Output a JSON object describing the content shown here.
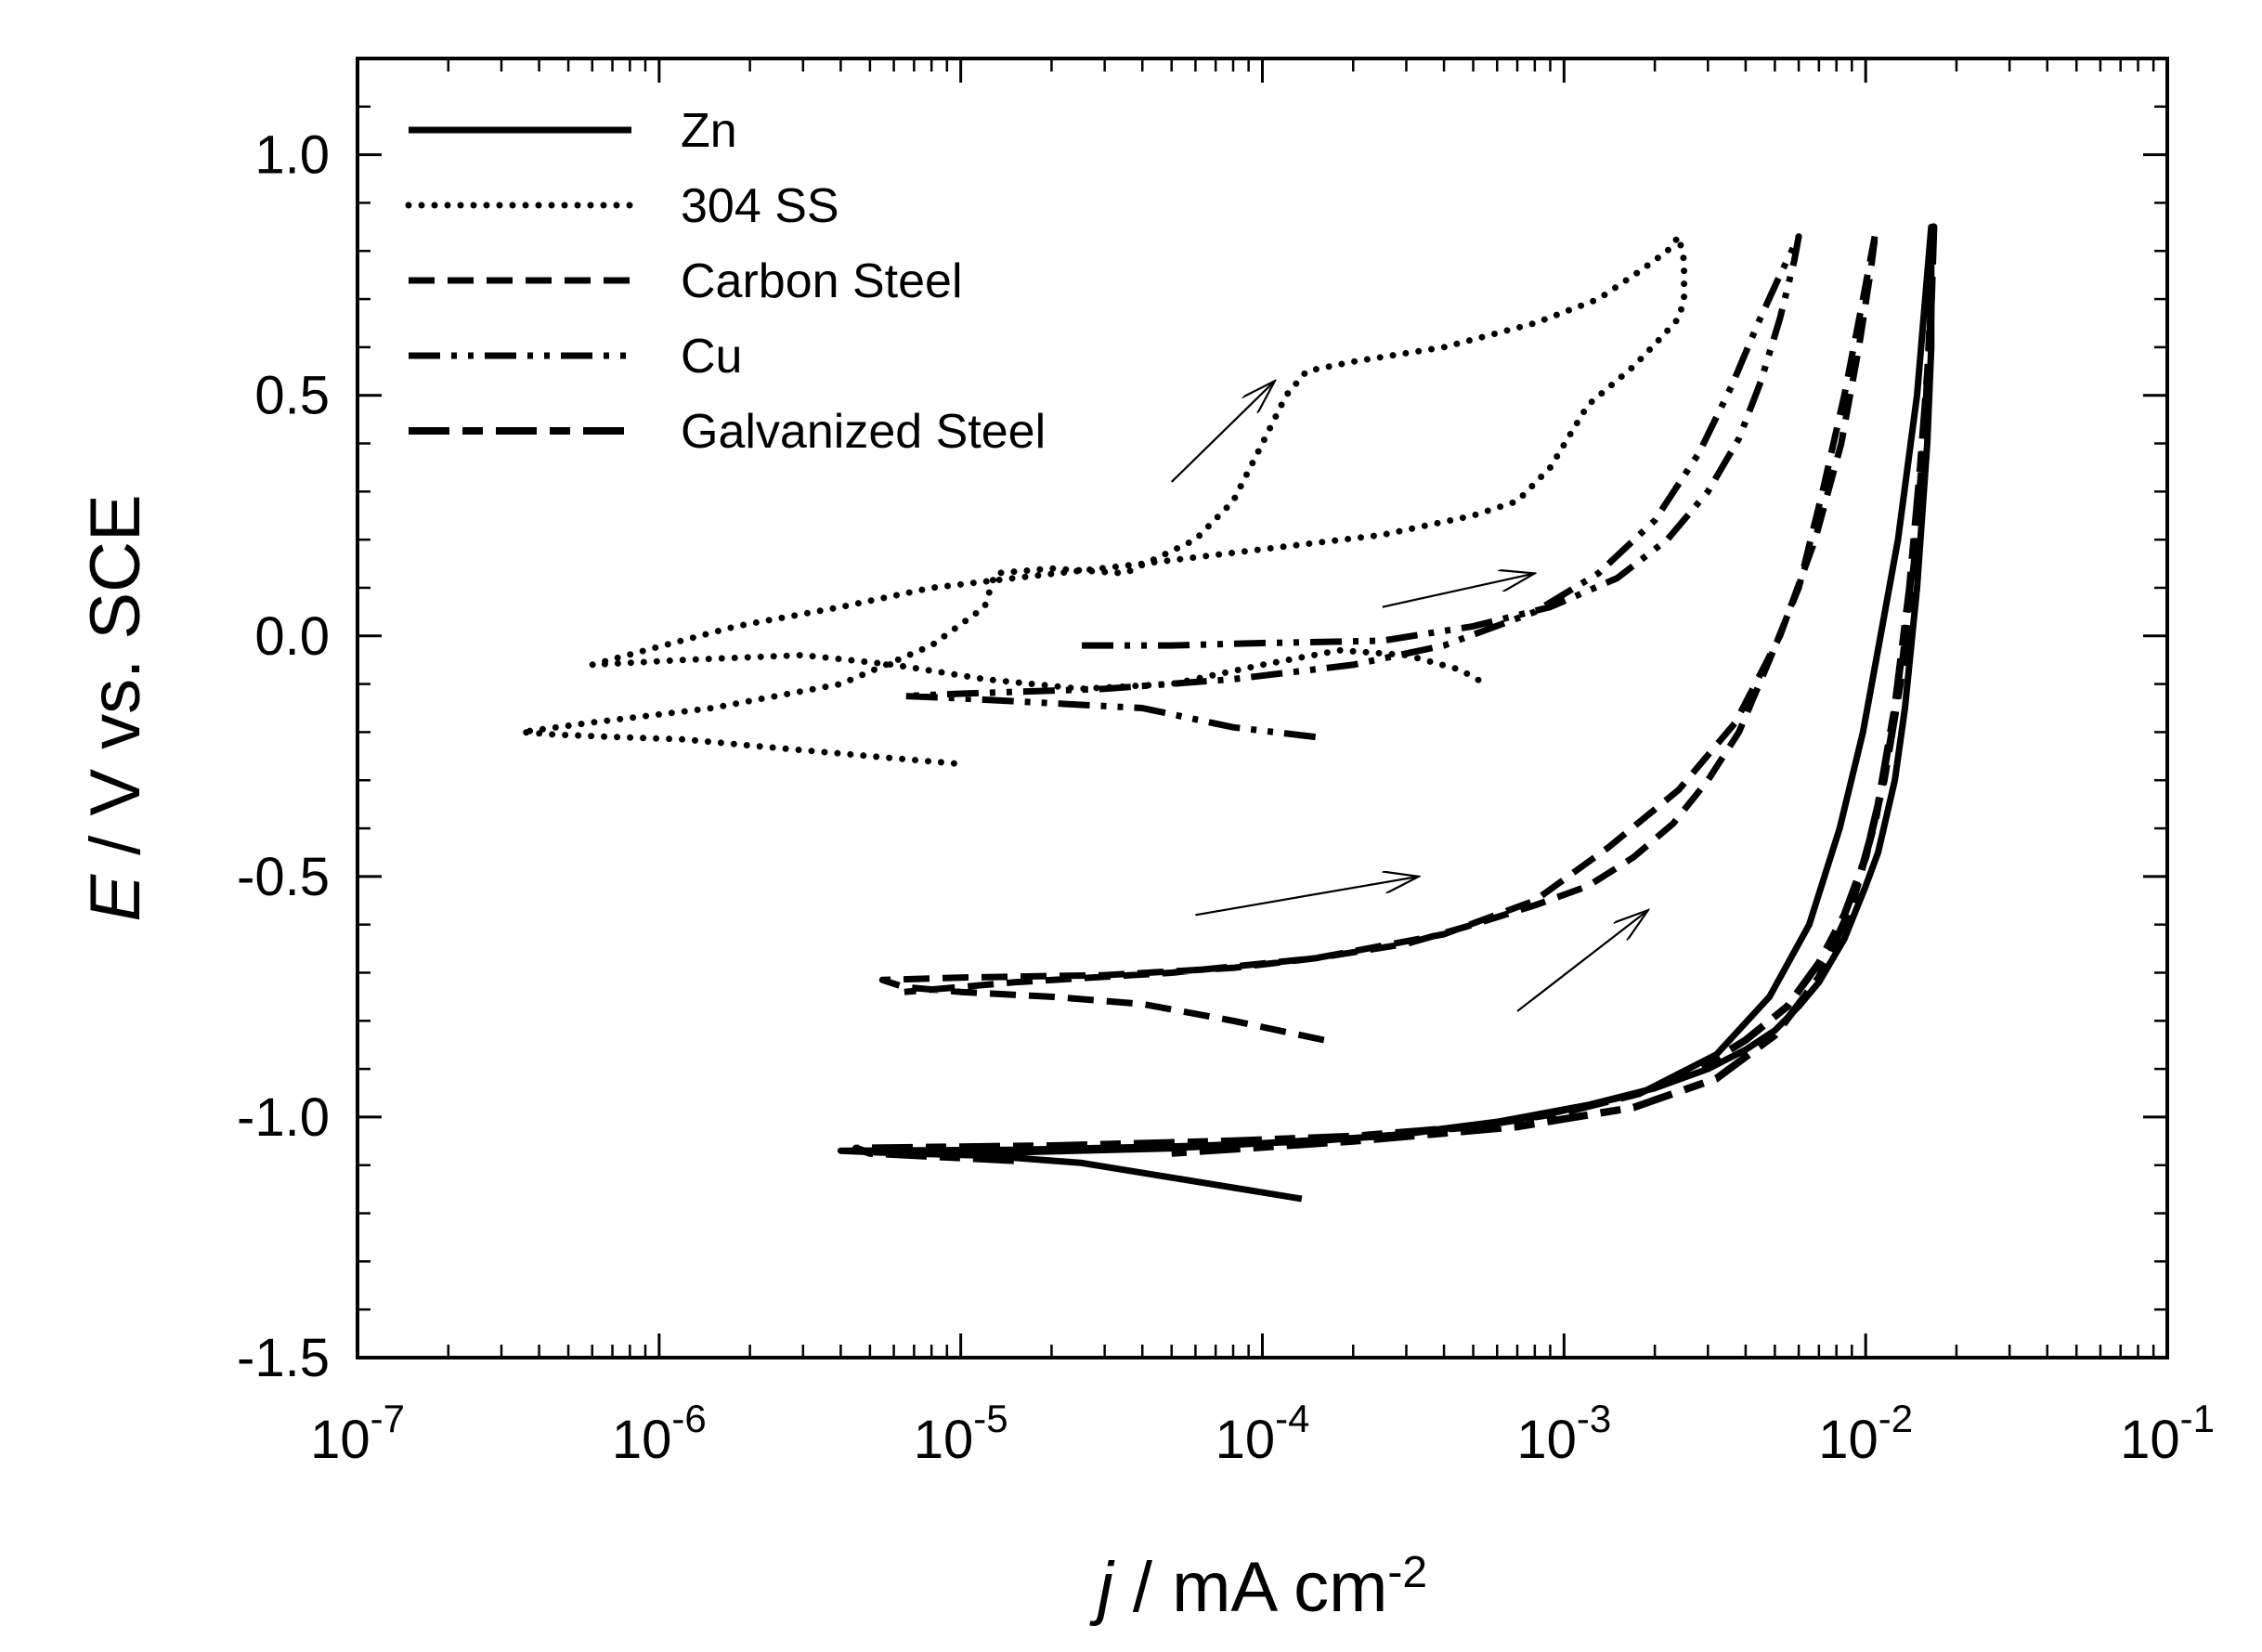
{
  "chart_data": {
    "type": "line",
    "title": "",
    "xscale": "log",
    "xlim": [
      1e-07,
      0.1
    ],
    "ylim": [
      -1.5,
      1.2
    ],
    "grid": false,
    "legend_position": "top-left",
    "xlabel": {
      "italic": "j",
      "rest": " / mA cm",
      "sup": "-2"
    },
    "ylabel": {
      "italic": "E",
      "rest": " / V vs. SCE"
    },
    "xticks": [
      {
        "value": 1e-07,
        "base": "10",
        "exp": "-7"
      },
      {
        "value": 1e-06,
        "base": "10",
        "exp": "-6"
      },
      {
        "value": 1e-05,
        "base": "10",
        "exp": "-5"
      },
      {
        "value": 0.0001,
        "base": "10",
        "exp": "-4"
      },
      {
        "value": 0.001,
        "base": "10",
        "exp": "-3"
      },
      {
        "value": 0.01,
        "base": "10",
        "exp": "-2"
      },
      {
        "value": 0.1,
        "base": "10",
        "exp": "-1"
      }
    ],
    "yticks": [
      {
        "value": 1.0,
        "label": "1.0"
      },
      {
        "value": 0.5,
        "label": "0.5"
      },
      {
        "value": 0.0,
        "label": "0.0"
      },
      {
        "value": -0.5,
        "label": "-0.5"
      },
      {
        "value": -1.0,
        "label": "-1.0"
      },
      {
        "value": -1.5,
        "label": "-1.5"
      }
    ],
    "series": [
      {
        "name": "Zn",
        "style": "solid",
        "x": [
          0.000135,
          5.5e-05,
          2.5e-05,
          1.2e-05,
          6e-06,
          4e-06,
          1.5e-05,
          6e-05,
          0.00015,
          0.0003,
          0.0006,
          0.0012,
          0.002,
          0.003,
          0.004,
          0.005,
          0.006,
          0.007,
          0.0085,
          0.01,
          0.011,
          0.0125,
          0.0135,
          0.0148,
          0.016,
          0.0165,
          0.0165,
          0.0148,
          0.0128,
          0.0112,
          0.0098,
          0.0082,
          0.0065,
          0.0048,
          0.0032,
          0.0018,
          0.0008,
          0.00025,
          5e-05,
          1.2e-05
        ],
        "y": [
          -1.17,
          -1.13,
          -1.095,
          -1.08,
          -1.075,
          -1.07,
          -1.068,
          -1.06,
          -1.05,
          -1.035,
          -1.01,
          -0.975,
          -0.94,
          -0.9,
          -0.86,
          -0.82,
          -0.77,
          -0.72,
          -0.63,
          -0.52,
          -0.45,
          -0.3,
          -0.15,
          0.1,
          0.4,
          0.6,
          0.85,
          0.5,
          0.2,
          0.0,
          -0.2,
          -0.4,
          -0.6,
          -0.75,
          -0.87,
          -0.95,
          -1.0,
          -1.04,
          -1.065,
          -1.075
        ]
      },
      {
        "name": "304 SS",
        "style": "dotted",
        "x": [
          9.5e-06,
          5e-06,
          2.2e-06,
          1.2e-06,
          7e-07,
          4.5e-07,
          3.5e-07,
          6e-07,
          1.5e-06,
          4e-06,
          8e-06,
          1.2e-05,
          1.3e-05,
          2e-05,
          3.5e-05,
          6e-05,
          8e-05,
          0.0001,
          0.00012,
          0.00014,
          0.0002,
          0.0004,
          0.0008,
          0.0013,
          0.0018,
          0.0022,
          0.0024,
          0.0025,
          0.0025,
          0.0024,
          0.0021,
          0.0017,
          0.0012,
          0.0009,
          0.0007,
          0.0005,
          0.00025,
          0.0001,
          4e-05,
          1.5e-05,
          8e-06,
          4e-06,
          1.8e-06,
          9e-07,
          6e-07,
          1.2e-06,
          3e-06,
          6e-06,
          1.2e-05,
          2.5e-05,
          5e-05,
          0.0001,
          0.00018,
          0.0003,
          0.00045,
          0.00055
        ],
        "y": [
          -0.265,
          -0.25,
          -0.23,
          -0.215,
          -0.21,
          -0.205,
          -0.2,
          -0.18,
          -0.15,
          -0.1,
          -0.02,
          0.06,
          0.13,
          0.14,
          0.13,
          0.2,
          0.28,
          0.4,
          0.5,
          0.55,
          0.57,
          0.6,
          0.65,
          0.7,
          0.76,
          0.8,
          0.83,
          0.78,
          0.7,
          0.66,
          0.62,
          0.56,
          0.48,
          0.35,
          0.28,
          0.25,
          0.21,
          0.18,
          0.15,
          0.12,
          0.1,
          0.06,
          0.02,
          -0.03,
          -0.06,
          -0.05,
          -0.04,
          -0.06,
          -0.09,
          -0.11,
          -0.1,
          -0.06,
          -0.03,
          -0.04,
          -0.07,
          -0.1
        ]
      },
      {
        "name": "Carbon Steel",
        "style": "dashed",
        "x": [
          0.00016,
          8e-05,
          4e-05,
          2e-05,
          1e-05,
          6.5e-06,
          5.5e-06,
          1e-05,
          3e-05,
          8e-05,
          0.00015,
          0.0003,
          0.0005,
          0.0008,
          0.0012,
          0.0017,
          0.0023,
          0.003,
          0.0038,
          0.0048,
          0.006,
          0.0072,
          0.0085,
          0.0098,
          0.0105,
          0.0108,
          0.0104,
          0.0095,
          0.0083,
          0.0068,
          0.0052,
          0.0037,
          0.0024,
          0.0014,
          0.0008,
          0.0004,
          0.00015,
          5e-05,
          1.5e-05,
          6.5e-06
        ],
        "y": [
          -0.84,
          -0.8,
          -0.765,
          -0.75,
          -0.74,
          -0.73,
          -0.715,
          -0.71,
          -0.705,
          -0.69,
          -0.67,
          -0.64,
          -0.6,
          -0.56,
          -0.52,
          -0.46,
          -0.39,
          -0.3,
          -0.2,
          -0.05,
          0.1,
          0.3,
          0.5,
          0.7,
          0.8,
          0.84,
          0.76,
          0.6,
          0.4,
          0.2,
          0.0,
          -0.18,
          -0.32,
          -0.44,
          -0.55,
          -0.62,
          -0.67,
          -0.7,
          -0.72,
          -0.74
        ]
      },
      {
        "name": "Cu",
        "style": "dash-dot-dot",
        "x": [
          0.00015,
          8e-05,
          4e-05,
          2e-05,
          1e-05,
          6.5e-06,
          1e-05,
          3e-05,
          8e-05,
          0.0002,
          0.0004,
          0.0008,
          0.0013,
          0.002,
          0.0028,
          0.0036,
          0.0044,
          0.0052,
          0.006,
          0.0058,
          0.0052,
          0.0045,
          0.0038,
          0.003,
          0.0022,
          0.0015,
          0.0009,
          0.0005,
          0.00025,
          0.0001,
          5e-05,
          2.5e-05
        ],
        "y": [
          -0.21,
          -0.19,
          -0.15,
          -0.14,
          -0.13,
          -0.125,
          -0.12,
          -0.11,
          -0.09,
          -0.06,
          -0.02,
          0.05,
          0.13,
          0.24,
          0.38,
          0.52,
          0.65,
          0.75,
          0.83,
          0.78,
          0.66,
          0.53,
          0.41,
          0.3,
          0.2,
          0.12,
          0.06,
          0.02,
          -0.01,
          -0.015,
          -0.02,
          -0.02
        ]
      },
      {
        "name": "Galvanized Steel",
        "style": "long-dash-short-dash",
        "x": [
          1.5e-05,
          5e-06,
          4.5e-06,
          2e-05,
          8e-05,
          0.0002,
          0.0005,
          0.001,
          0.0018,
          0.0028,
          0.004,
          0.0055,
          0.007,
          0.0085,
          0.01,
          0.0115,
          0.013,
          0.0145,
          0.0158,
          0.0165,
          0.0168,
          0.0163,
          0.0152,
          0.014,
          0.0125,
          0.0108,
          0.009,
          0.007,
          0.005,
          0.0032,
          0.0017,
          0.0007,
          0.0002,
          5e-05
        ],
        "y": [
          -1.09,
          -1.075,
          -1.065,
          -1.06,
          -1.05,
          -1.04,
          -1.02,
          -0.99,
          -0.95,
          -0.9,
          -0.84,
          -0.77,
          -0.68,
          -0.58,
          -0.46,
          -0.3,
          -0.1,
          0.15,
          0.45,
          0.7,
          0.85,
          0.6,
          0.35,
          0.1,
          -0.15,
          -0.38,
          -0.56,
          -0.71,
          -0.83,
          -0.92,
          -0.98,
          -1.02,
          -1.05,
          -1.075
        ]
      }
    ],
    "annotations": [
      {
        "type": "arrow",
        "from": [
          5e-05,
          0.32
        ],
        "to": [
          0.00011,
          0.53
        ]
      },
      {
        "type": "arrow",
        "from": [
          0.00025,
          0.06
        ],
        "to": [
          0.0008,
          0.13
        ]
      },
      {
        "type": "arrow",
        "from": [
          6e-05,
          -0.58
        ],
        "to": [
          0.00033,
          -0.5
        ]
      },
      {
        "type": "arrow",
        "from": [
          0.0007,
          -0.78
        ],
        "to": [
          0.0019,
          -0.57
        ]
      }
    ]
  }
}
